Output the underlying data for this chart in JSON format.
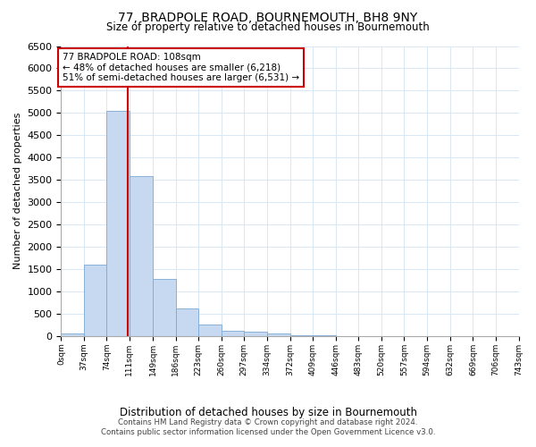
{
  "title": "77, BRADPOLE ROAD, BOURNEMOUTH, BH8 9NY",
  "subtitle": "Size of property relative to detached houses in Bournemouth",
  "xlabel": "Distribution of detached houses by size in Bournemouth",
  "ylabel": "Number of detached properties",
  "footer_line1": "Contains HM Land Registry data © Crown copyright and database right 2024.",
  "footer_line2": "Contains public sector information licensed under the Open Government Licence v3.0.",
  "annotation_line1": "77 BRADPOLE ROAD: 108sqm",
  "annotation_line2": "← 48% of detached houses are smaller (6,218)",
  "annotation_line3": "51% of semi-detached houses are larger (6,531) →",
  "property_size": 108,
  "bin_edges": [
    0,
    37,
    74,
    111,
    149,
    186,
    223,
    260,
    297,
    334,
    372,
    409,
    446,
    483,
    520,
    557,
    594,
    632,
    669,
    706,
    743
  ],
  "bar_values": [
    50,
    1600,
    5050,
    3580,
    1280,
    620,
    270,
    120,
    100,
    60,
    10,
    10,
    5,
    3,
    2,
    1,
    1,
    1,
    1,
    1
  ],
  "bar_color": "#c6d9f0",
  "bar_edge_color": "#7da9d4",
  "vline_color": "#cc0000",
  "annotation_box_color": "#cc0000",
  "grid_color": "#d8e8f4",
  "background_color": "#ffffff",
  "ylim": [
    0,
    6500
  ],
  "yticks": [
    0,
    500,
    1000,
    1500,
    2000,
    2500,
    3000,
    3500,
    4000,
    4500,
    5000,
    5500,
    6000,
    6500
  ]
}
